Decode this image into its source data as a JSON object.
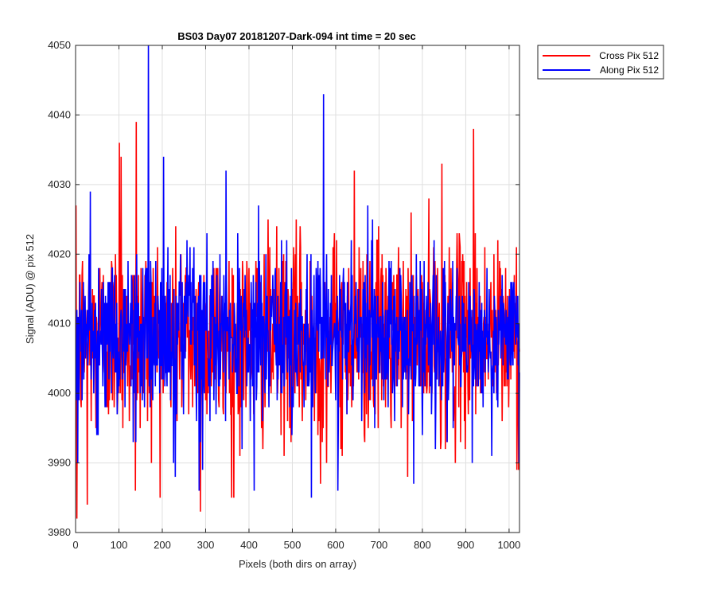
{
  "chart_data": {
    "type": "line",
    "title": "BS03 Day07 20181207-Dark-094 int time = 20 sec",
    "xlabel": "Pixels (both dirs on array)",
    "ylabel": "Signal (ADU) @ pix 512",
    "xlim": [
      0,
      1024
    ],
    "ylim": [
      3980,
      4050
    ],
    "xticks": [
      0,
      100,
      200,
      300,
      400,
      500,
      600,
      700,
      800,
      900,
      1000
    ],
    "yticks": [
      3980,
      3990,
      4000,
      4010,
      4020,
      4030,
      4040,
      4050
    ],
    "grid": true,
    "legend_placement": "outside-top-right",
    "colors": {
      "cross": "#ff0000",
      "along": "#0000ff",
      "axis": "#262626",
      "grid": "#dfdfdf"
    },
    "series": [
      {
        "name": "Cross Pix 512",
        "color": "#ff0000",
        "x_start": 1,
        "x_step": 1,
        "n_points": 1024,
        "mean": 4008,
        "noise_std": 7,
        "notable_points": [
          [
            3,
            3982
          ],
          [
            27,
            3984
          ],
          [
            101,
            4036
          ],
          [
            105,
            4034
          ],
          [
            140,
            4039
          ],
          [
            138,
            3986
          ],
          [
            243,
            4020
          ],
          [
            288,
            3983
          ],
          [
            365,
            3985
          ],
          [
            565,
            3987
          ],
          [
            615,
            3991
          ],
          [
            643,
            4032
          ],
          [
            845,
            4033
          ],
          [
            918,
            4038
          ],
          [
            1018,
            3989
          ]
        ]
      },
      {
        "name": "Along Pix 512",
        "color": "#0000ff",
        "x_start": 1,
        "x_step": 1,
        "n_points": 1024,
        "mean": 4008,
        "noise_std": 6,
        "notable_points": [
          [
            5,
            3990
          ],
          [
            168,
            4050
          ],
          [
            203,
            4034
          ],
          [
            230,
            3988
          ],
          [
            285,
            3986
          ],
          [
            412,
            3986
          ],
          [
            544,
            3985
          ],
          [
            572,
            4043
          ],
          [
            605,
            3986
          ],
          [
            780,
            3987
          ],
          [
            915,
            3990
          ],
          [
            1023,
            3990
          ]
        ]
      }
    ]
  }
}
